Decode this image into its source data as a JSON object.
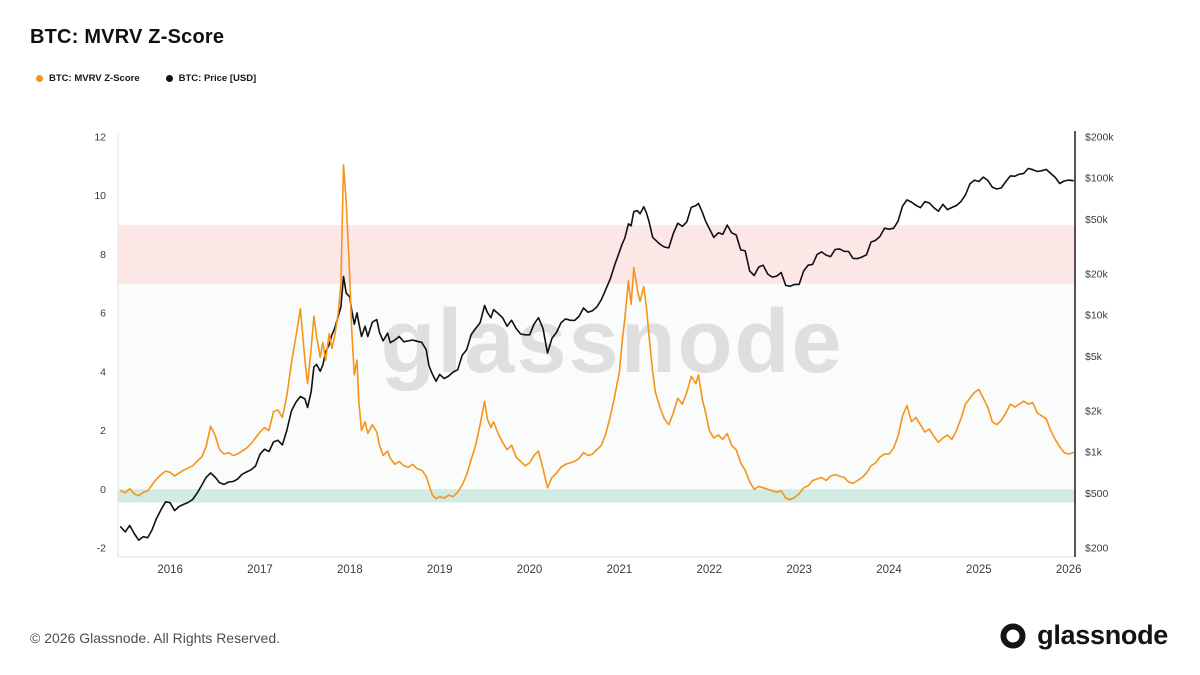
{
  "title": "BTC: MVRV Z-Score",
  "watermark": "glassnode",
  "footer": {
    "copyright": "© 2026 Glassnode. All Rights Reserved.",
    "brand": "glassnode"
  },
  "chart_data": {
    "type": "line",
    "title": "BTC: MVRV Z-Score",
    "xlim": [
      2015.42,
      2026.07
    ],
    "x_ticks": [
      2016,
      2017,
      2018,
      2019,
      2020,
      2021,
      2022,
      2023,
      2024,
      2025,
      2026
    ],
    "left_axis": {
      "label": "MVRV Z-Score",
      "range": [
        -2,
        12
      ],
      "ticks": [
        -2,
        0,
        2,
        4,
        6,
        8,
        10,
        12
      ]
    },
    "right_axis": {
      "label": "BTC Price [USD]",
      "scale": "log",
      "range": [
        200,
        200000
      ],
      "ticks": [
        {
          "v": 200000,
          "label": "$200k"
        },
        {
          "v": 100000,
          "label": "$100k"
        },
        {
          "v": 50000,
          "label": "$50k"
        },
        {
          "v": 20000,
          "label": "$20k"
        },
        {
          "v": 10000,
          "label": "$10k"
        },
        {
          "v": 5000,
          "label": "$5k"
        },
        {
          "v": 2000,
          "label": "$2k"
        },
        {
          "v": 1000,
          "label": "$1k"
        },
        {
          "v": 500,
          "label": "$500"
        },
        {
          "v": 200,
          "label": "$200"
        }
      ]
    },
    "bands": [
      {
        "axis": "left",
        "from": 0,
        "to": 7,
        "color": "rgba(76,175,110,0.035)",
        "meaning": "neutral zone"
      },
      {
        "axis": "left",
        "from": 7,
        "to": 9,
        "color": "rgba(239,83,80,0.14)",
        "meaning": "overvalued zone"
      },
      {
        "axis": "left",
        "from": -0.45,
        "to": 0,
        "color": "rgba(38,166,124,0.22)",
        "meaning": "undervalued zone"
      }
    ],
    "series": [
      {
        "name": "BTC: MVRV Z-Score",
        "axis": "left",
        "color": "#F7931A",
        "col": 1
      },
      {
        "name": "BTC: Price [USD]",
        "axis": "right",
        "color": "#111111",
        "col": 2
      }
    ],
    "points": [
      [
        2015.45,
        -0.05,
        285
      ],
      [
        2015.5,
        -0.12,
        262
      ],
      [
        2015.55,
        0.02,
        292
      ],
      [
        2015.6,
        -0.15,
        255
      ],
      [
        2015.65,
        -0.22,
        228
      ],
      [
        2015.7,
        -0.1,
        242
      ],
      [
        2015.75,
        -0.05,
        238
      ],
      [
        2015.8,
        0.15,
        272
      ],
      [
        2015.85,
        0.35,
        330
      ],
      [
        2015.9,
        0.5,
        382
      ],
      [
        2015.95,
        0.62,
        435
      ],
      [
        2016,
        0.58,
        428
      ],
      [
        2016.05,
        0.45,
        375
      ],
      [
        2016.1,
        0.55,
        402
      ],
      [
        2016.15,
        0.65,
        416
      ],
      [
        2016.2,
        0.72,
        430
      ],
      [
        2016.25,
        0.8,
        452
      ],
      [
        2016.3,
        0.95,
        502
      ],
      [
        2016.35,
        1.1,
        572
      ],
      [
        2016.4,
        1.45,
        655
      ],
      [
        2016.45,
        2.15,
        705
      ],
      [
        2016.5,
        1.85,
        660
      ],
      [
        2016.55,
        1.35,
        600
      ],
      [
        2016.6,
        1.2,
        582
      ],
      [
        2016.65,
        1.25,
        606
      ],
      [
        2016.7,
        1.15,
        612
      ],
      [
        2016.75,
        1.2,
        636
      ],
      [
        2016.8,
        1.3,
        690
      ],
      [
        2016.85,
        1.4,
        718
      ],
      [
        2016.9,
        1.55,
        744
      ],
      [
        2016.95,
        1.75,
        792
      ],
      [
        2017,
        1.95,
        968
      ],
      [
        2017.05,
        2.1,
        1052
      ],
      [
        2017.1,
        2,
        1012
      ],
      [
        2017.15,
        2.65,
        1188
      ],
      [
        2017.2,
        2.7,
        1222
      ],
      [
        2017.25,
        2.45,
        1132
      ],
      [
        2017.3,
        3.2,
        1450
      ],
      [
        2017.35,
        4.3,
        2000
      ],
      [
        2017.4,
        5.2,
        2320
      ],
      [
        2017.45,
        6.15,
        2550
      ],
      [
        2017.5,
        4.4,
        2450
      ],
      [
        2017.53,
        3.6,
        2120
      ],
      [
        2017.57,
        4.8,
        2780
      ],
      [
        2017.6,
        5.9,
        4200
      ],
      [
        2017.63,
        5.2,
        4380
      ],
      [
        2017.67,
        4.5,
        3900
      ],
      [
        2017.7,
        5,
        4350
      ],
      [
        2017.73,
        4.4,
        5400
      ],
      [
        2017.77,
        5.3,
        6100
      ],
      [
        2017.8,
        4.8,
        7200
      ],
      [
        2017.83,
        5.2,
        8000
      ],
      [
        2017.87,
        6,
        9800
      ],
      [
        2017.9,
        7,
        11500
      ],
      [
        2017.93,
        11.05,
        19200
      ],
      [
        2017.96,
        9.8,
        14500
      ],
      [
        2018,
        7.2,
        13600
      ],
      [
        2018.02,
        5.5,
        11000
      ],
      [
        2018.05,
        3.9,
        8600
      ],
      [
        2018.08,
        4.4,
        10400
      ],
      [
        2018.1,
        3,
        8800
      ],
      [
        2018.13,
        2,
        7000
      ],
      [
        2018.17,
        2.3,
        8300
      ],
      [
        2018.2,
        1.9,
        7000
      ],
      [
        2018.25,
        2.2,
        8900
      ],
      [
        2018.3,
        1.95,
        9300
      ],
      [
        2018.33,
        1.5,
        7500
      ],
      [
        2018.37,
        1.15,
        6500
      ],
      [
        2018.42,
        1.3,
        7400
      ],
      [
        2018.45,
        1.05,
        6300
      ],
      [
        2018.5,
        0.85,
        6600
      ],
      [
        2018.55,
        0.95,
        7000
      ],
      [
        2018.6,
        0.8,
        6400
      ],
      [
        2018.65,
        0.75,
        6500
      ],
      [
        2018.7,
        0.85,
        6600
      ],
      [
        2018.75,
        0.7,
        6450
      ],
      [
        2018.8,
        0.65,
        6350
      ],
      [
        2018.85,
        0.45,
        5600
      ],
      [
        2018.88,
        0.15,
        4300
      ],
      [
        2018.92,
        -0.2,
        3700
      ],
      [
        2018.96,
        -0.32,
        3300
      ],
      [
        2019,
        -0.25,
        3700
      ],
      [
        2019.05,
        -0.3,
        3450
      ],
      [
        2019.1,
        -0.2,
        3600
      ],
      [
        2019.15,
        -0.25,
        3850
      ],
      [
        2019.2,
        -0.1,
        4000
      ],
      [
        2019.25,
        0.15,
        5100
      ],
      [
        2019.3,
        0.5,
        5600
      ],
      [
        2019.35,
        1,
        7200
      ],
      [
        2019.4,
        1.5,
        8000
      ],
      [
        2019.45,
        2.2,
        8800
      ],
      [
        2019.5,
        3,
        11800
      ],
      [
        2019.53,
        2.4,
        10500
      ],
      [
        2019.57,
        2.1,
        9600
      ],
      [
        2019.6,
        2.3,
        11000
      ],
      [
        2019.65,
        1.9,
        10300
      ],
      [
        2019.7,
        1.6,
        9600
      ],
      [
        2019.75,
        1.35,
        8300
      ],
      [
        2019.8,
        1.5,
        9200
      ],
      [
        2019.85,
        1.1,
        8000
      ],
      [
        2019.9,
        0.95,
        7300
      ],
      [
        2019.95,
        0.8,
        7200
      ],
      [
        2020,
        0.9,
        7200
      ],
      [
        2020.05,
        1.15,
        8600
      ],
      [
        2020.1,
        1.3,
        9600
      ],
      [
        2020.15,
        0.7,
        8000
      ],
      [
        2020.2,
        0.05,
        5300
      ],
      [
        2020.25,
        0.4,
        6800
      ],
      [
        2020.3,
        0.55,
        7500
      ],
      [
        2020.35,
        0.75,
        8800
      ],
      [
        2020.4,
        0.85,
        9400
      ],
      [
        2020.45,
        0.9,
        9200
      ],
      [
        2020.5,
        0.95,
        9150
      ],
      [
        2020.55,
        1.05,
        9800
      ],
      [
        2020.6,
        1.25,
        11300
      ],
      [
        2020.65,
        1.15,
        10500
      ],
      [
        2020.7,
        1.2,
        10800
      ],
      [
        2020.75,
        1.35,
        11500
      ],
      [
        2020.8,
        1.5,
        13000
      ],
      [
        2020.85,
        1.9,
        15500
      ],
      [
        2020.9,
        2.5,
        18500
      ],
      [
        2020.95,
        3.2,
        23500
      ],
      [
        2021,
        4,
        29000
      ],
      [
        2021.03,
        5,
        33000
      ],
      [
        2021.06,
        5.8,
        36500
      ],
      [
        2021.1,
        7.1,
        46500
      ],
      [
        2021.13,
        6.3,
        45000
      ],
      [
        2021.16,
        7.55,
        57000
      ],
      [
        2021.2,
        6.8,
        58000
      ],
      [
        2021.23,
        6.4,
        55000
      ],
      [
        2021.27,
        6.9,
        62000
      ],
      [
        2021.3,
        6.2,
        56000
      ],
      [
        2021.33,
        5.2,
        48000
      ],
      [
        2021.37,
        4,
        37000
      ],
      [
        2021.4,
        3.3,
        35500
      ],
      [
        2021.45,
        2.8,
        33000
      ],
      [
        2021.5,
        2.4,
        31500
      ],
      [
        2021.55,
        2.2,
        31000
      ],
      [
        2021.6,
        2.6,
        39500
      ],
      [
        2021.65,
        3.1,
        47000
      ],
      [
        2021.7,
        2.9,
        44500
      ],
      [
        2021.75,
        3.3,
        48000
      ],
      [
        2021.8,
        3.85,
        61500
      ],
      [
        2021.85,
        3.6,
        63000
      ],
      [
        2021.88,
        3.9,
        65500
      ],
      [
        2021.92,
        3.1,
        57000
      ],
      [
        2021.96,
        2.6,
        48500
      ],
      [
        2022,
        2,
        43000
      ],
      [
        2022.05,
        1.75,
        37000
      ],
      [
        2022.1,
        1.85,
        40000
      ],
      [
        2022.15,
        1.7,
        39000
      ],
      [
        2022.2,
        1.9,
        45500
      ],
      [
        2022.25,
        1.5,
        40000
      ],
      [
        2022.3,
        1.35,
        38500
      ],
      [
        2022.35,
        0.9,
        30000
      ],
      [
        2022.4,
        0.65,
        29500
      ],
      [
        2022.45,
        0.25,
        21000
      ],
      [
        2022.5,
        0,
        19500
      ],
      [
        2022.55,
        0.1,
        22500
      ],
      [
        2022.6,
        0.05,
        23200
      ],
      [
        2022.65,
        0,
        20000
      ],
      [
        2022.7,
        -0.05,
        19000
      ],
      [
        2022.75,
        -0.1,
        19300
      ],
      [
        2022.8,
        -0.05,
        20500
      ],
      [
        2022.85,
        -0.3,
        16500
      ],
      [
        2022.9,
        -0.35,
        16300
      ],
      [
        2022.95,
        -0.28,
        16800
      ],
      [
        2023,
        -0.15,
        16800
      ],
      [
        2023.05,
        0.05,
        21000
      ],
      [
        2023.1,
        0.12,
        23200
      ],
      [
        2023.15,
        0.3,
        23500
      ],
      [
        2023.2,
        0.35,
        27800
      ],
      [
        2023.25,
        0.4,
        29000
      ],
      [
        2023.3,
        0.3,
        27500
      ],
      [
        2023.35,
        0.45,
        26800
      ],
      [
        2023.4,
        0.5,
        30200
      ],
      [
        2023.45,
        0.45,
        30500
      ],
      [
        2023.5,
        0.4,
        29300
      ],
      [
        2023.55,
        0.25,
        29200
      ],
      [
        2023.6,
        0.2,
        26000
      ],
      [
        2023.65,
        0.3,
        25900
      ],
      [
        2023.7,
        0.4,
        26600
      ],
      [
        2023.75,
        0.55,
        27600
      ],
      [
        2023.8,
        0.8,
        34200
      ],
      [
        2023.85,
        0.9,
        35200
      ],
      [
        2023.9,
        1.1,
        37600
      ],
      [
        2023.95,
        1.2,
        43200
      ],
      [
        2024,
        1.2,
        42500
      ],
      [
        2024.05,
        1.4,
        43100
      ],
      [
        2024.1,
        1.8,
        48500
      ],
      [
        2024.15,
        2.5,
        62500
      ],
      [
        2024.2,
        2.85,
        69500
      ],
      [
        2024.25,
        2.3,
        67000
      ],
      [
        2024.3,
        2.45,
        63500
      ],
      [
        2024.35,
        2.2,
        61000
      ],
      [
        2024.4,
        1.95,
        67500
      ],
      [
        2024.45,
        2.05,
        66000
      ],
      [
        2024.5,
        1.8,
        61000
      ],
      [
        2024.55,
        1.6,
        57500
      ],
      [
        2024.6,
        1.75,
        64500
      ],
      [
        2024.65,
        1.85,
        59000
      ],
      [
        2024.7,
        1.7,
        61200
      ],
      [
        2024.75,
        2,
        63200
      ],
      [
        2024.8,
        2.4,
        67500
      ],
      [
        2024.85,
        2.9,
        75500
      ],
      [
        2024.9,
        3.1,
        91000
      ],
      [
        2024.95,
        3.3,
        97000
      ],
      [
        2025,
        3.4,
        94500
      ],
      [
        2025.05,
        3.1,
        102000
      ],
      [
        2025.1,
        2.8,
        96500
      ],
      [
        2025.15,
        2.3,
        86000
      ],
      [
        2025.2,
        2.2,
        83500
      ],
      [
        2025.25,
        2.35,
        85000
      ],
      [
        2025.3,
        2.6,
        94500
      ],
      [
        2025.35,
        2.9,
        104000
      ],
      [
        2025.4,
        2.8,
        103500
      ],
      [
        2025.45,
        2.9,
        107000
      ],
      [
        2025.5,
        3,
        108500
      ],
      [
        2025.55,
        2.9,
        118000
      ],
      [
        2025.6,
        2.95,
        115500
      ],
      [
        2025.65,
        2.6,
        112000
      ],
      [
        2025.7,
        2.5,
        113500
      ],
      [
        2025.75,
        2.4,
        116000
      ],
      [
        2025.8,
        2,
        108500
      ],
      [
        2025.85,
        1.7,
        101500
      ],
      [
        2025.9,
        1.45,
        91500
      ],
      [
        2025.95,
        1.25,
        95500
      ],
      [
        2026,
        1.2,
        97000
      ],
      [
        2026.05,
        1.25,
        96000
      ]
    ]
  }
}
